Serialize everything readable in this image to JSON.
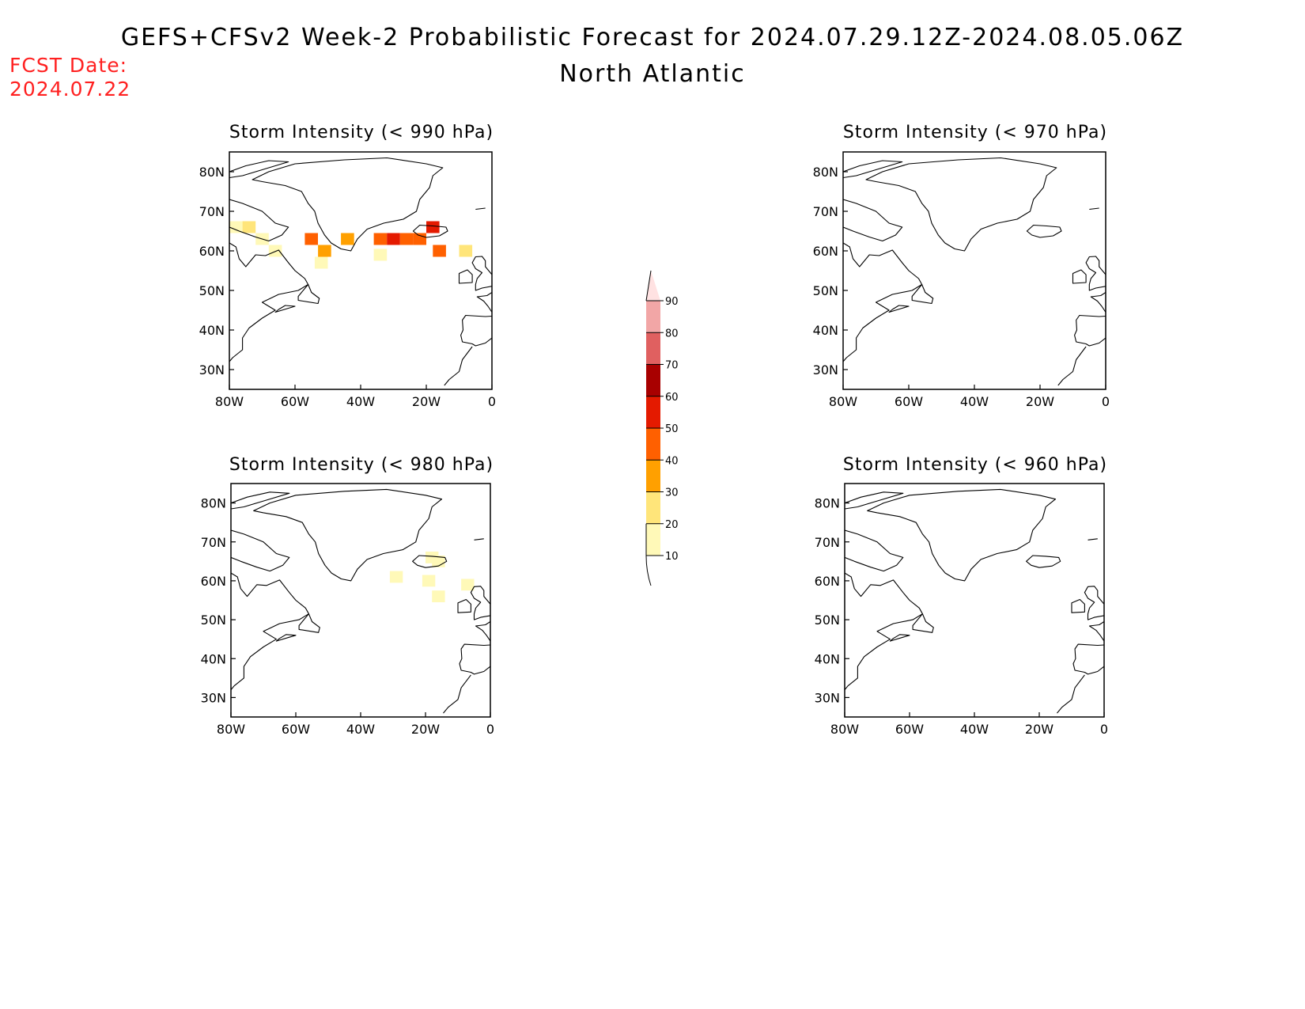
{
  "title_line1": "GEFS+CFSv2 Week-2 Probabilistic Forecast for 2024.07.29.12Z-2024.08.05.06Z",
  "title_line2": "North Atlantic",
  "fcst_label": "FCST Date:",
  "fcst_value": "2024.07.22",
  "axes": {
    "lon_ticks": [
      "80W",
      "60W",
      "40W",
      "20W",
      "0"
    ],
    "lat_ticks": [
      "80N",
      "70N",
      "60N",
      "50N",
      "40N",
      "30N"
    ]
  },
  "panels": [
    {
      "id": "p990",
      "title": "Storm Intensity (< 990 hPa)",
      "probability_cells": [
        {
          "lon": -78,
          "lat": 66,
          "prob": 15
        },
        {
          "lon": -74,
          "lat": 66,
          "prob": 25
        },
        {
          "lon": -70,
          "lat": 63,
          "prob": 15
        },
        {
          "lon": -66,
          "lat": 60,
          "prob": 15
        },
        {
          "lon": -55,
          "lat": 63,
          "prob": 45
        },
        {
          "lon": -51,
          "lat": 60,
          "prob": 35
        },
        {
          "lon": -52,
          "lat": 57,
          "prob": 15
        },
        {
          "lon": -44,
          "lat": 63,
          "prob": 35
        },
        {
          "lon": -34,
          "lat": 63,
          "prob": 45
        },
        {
          "lon": -30,
          "lat": 63,
          "prob": 55
        },
        {
          "lon": -26,
          "lat": 63,
          "prob": 45
        },
        {
          "lon": -22,
          "lat": 63,
          "prob": 45
        },
        {
          "lon": -18,
          "lat": 66,
          "prob": 55
        },
        {
          "lon": -16,
          "lat": 60,
          "prob": 45
        },
        {
          "lon": -8,
          "lat": 60,
          "prob": 25
        },
        {
          "lon": -34,
          "lat": 59,
          "prob": 15
        }
      ]
    },
    {
      "id": "p970",
      "title": "Storm Intensity (< 970 hPa)",
      "probability_cells": []
    },
    {
      "id": "p980",
      "title": "Storm Intensity (< 980 hPa)",
      "probability_cells": [
        {
          "lon": -18,
          "lat": 66,
          "prob": 15
        },
        {
          "lon": -16,
          "lat": 65,
          "prob": 15
        },
        {
          "lon": -29,
          "lat": 61,
          "prob": 15
        },
        {
          "lon": -19,
          "lat": 60,
          "prob": 15
        },
        {
          "lon": -7,
          "lat": 59,
          "prob": 15
        },
        {
          "lon": -16,
          "lat": 56,
          "prob": 15
        }
      ]
    },
    {
      "id": "p960",
      "title": "Storm Intensity (< 960 hPa)",
      "probability_cells": []
    }
  ],
  "colorbar": {
    "levels": [
      "10",
      "20",
      "30",
      "40",
      "50",
      "60",
      "70",
      "80",
      "90"
    ],
    "colors": [
      "#fff9b8",
      "#ffe57a",
      "#ffa000",
      "#ff6000",
      "#e41a00",
      "#a80000",
      "#e06060",
      "#f2a6a6",
      "#ffe2e2"
    ]
  }
}
